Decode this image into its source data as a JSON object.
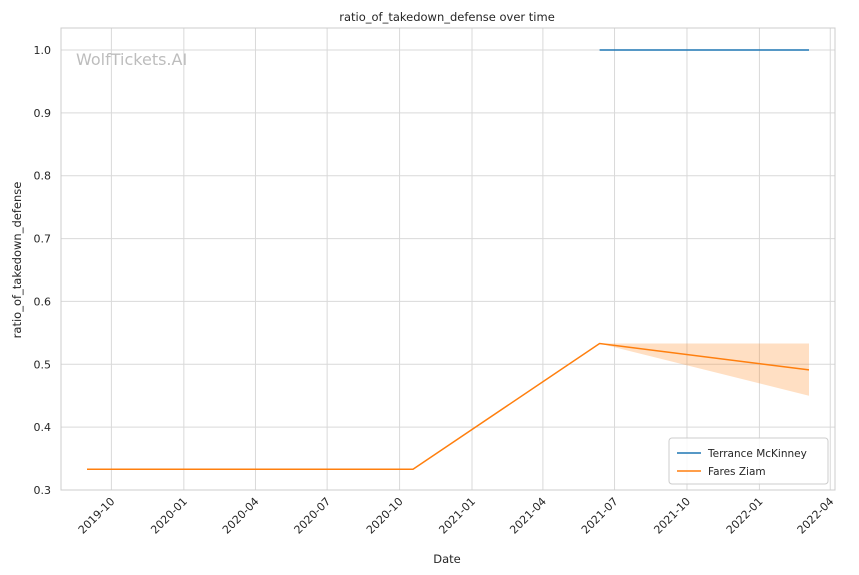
{
  "chart_data": {
    "type": "line",
    "title": "ratio_of_takedown_defense over time",
    "xlabel": "Date",
    "ylabel": "ratio_of_takedown_defense",
    "watermark": "WolfTickets.AI",
    "x_ticks": [
      "2019-10",
      "2020-01",
      "2020-04",
      "2020-07",
      "2020-10",
      "2021-01",
      "2021-04",
      "2021-07",
      "2021-10",
      "2022-01",
      "2022-04"
    ],
    "y_ticks": [
      0.3,
      0.4,
      0.5,
      0.6,
      0.7,
      0.8,
      0.9,
      1.0
    ],
    "xlim": [
      "2019-07-29",
      "2022-04-07"
    ],
    "ylim": [
      0.3,
      1.035
    ],
    "grid": true,
    "legend_position": "lower-right",
    "series": [
      {
        "name": "Terrance McKinney",
        "color": "#1f77b4",
        "x": [
          "2021-06-12",
          "2022-03-05"
        ],
        "y": [
          1.0,
          1.0
        ]
      },
      {
        "name": "Fares Ziam",
        "color": "#ff7f0e",
        "x": [
          "2019-08-31",
          "2020-10-18",
          "2021-06-12",
          "2022-03-05"
        ],
        "y": [
          0.333,
          0.333,
          0.533,
          0.491
        ],
        "band_upper": [
          0.333,
          0.333,
          0.533,
          0.533
        ],
        "band_lower": [
          0.333,
          0.333,
          0.533,
          0.45
        ]
      }
    ]
  }
}
